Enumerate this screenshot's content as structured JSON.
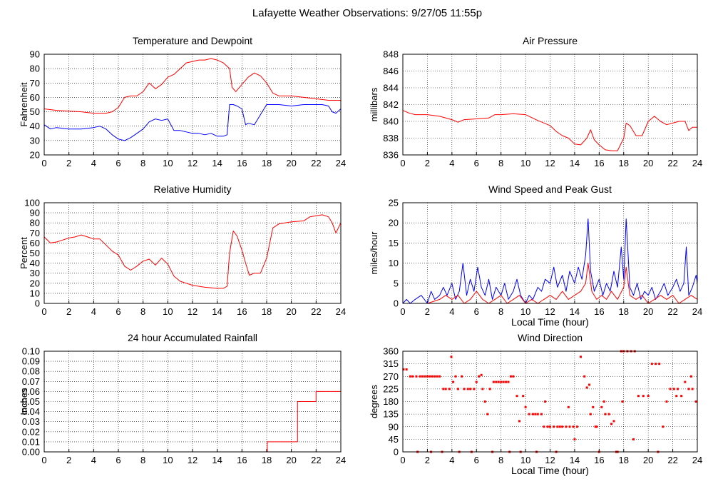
{
  "page": {
    "title": "Lafayette Weather Observations: 9/27/05 11:55p"
  },
  "colors": {
    "red": "#ff0000",
    "blue": "#0000ff",
    "grid": "#000000",
    "frame": "#000000"
  },
  "chart_data": [
    {
      "id": "temp",
      "type": "line",
      "title": "Temperature and Dewpoint",
      "ylabel": "Fahrenheit",
      "xlabel": "",
      "xlim": [
        0,
        24
      ],
      "ylim": [
        20,
        90
      ],
      "xticks": [
        0,
        2,
        4,
        6,
        8,
        10,
        12,
        14,
        16,
        18,
        20,
        22,
        24
      ],
      "yticks": [
        20,
        30,
        40,
        50,
        60,
        70,
        80,
        90
      ],
      "ytick_labels": [
        "20",
        "30",
        "40",
        "50",
        "60",
        "70",
        "80",
        "90"
      ],
      "grid": true,
      "series": [
        {
          "color": "#ff0000",
          "x": [
            0,
            1,
            2,
            3,
            4,
            5,
            5.5,
            6,
            6.5,
            7,
            7.5,
            8,
            8.5,
            9,
            9.5,
            10,
            10.5,
            11,
            11.5,
            12,
            12.5,
            13,
            13.5,
            14,
            14.5,
            15,
            15.2,
            15.5,
            16,
            16.5,
            17,
            17.5,
            18,
            18.5,
            19,
            20,
            21,
            22,
            23,
            24
          ],
          "y": [
            52,
            51,
            50.5,
            50,
            49,
            49,
            50,
            53,
            60,
            61,
            61,
            64,
            70,
            66,
            69,
            74,
            76,
            80,
            84,
            85,
            86,
            86,
            87,
            86,
            84,
            80,
            67,
            64,
            69,
            74,
            77,
            75,
            70,
            63,
            61,
            61,
            60,
            59,
            58,
            58
          ]
        },
        {
          "color": "#0000ff",
          "x": [
            0,
            0.5,
            1,
            2,
            3,
            4,
            4.5,
            5,
            5.5,
            6,
            6.5,
            7,
            7.5,
            8,
            8.5,
            9,
            9.5,
            10,
            10.5,
            11,
            11.5,
            12,
            12.5,
            13,
            13.5,
            14,
            14.5,
            14.8,
            15,
            15.3,
            15.6,
            16,
            16.3,
            16.5,
            17,
            17.5,
            18,
            18.5,
            19,
            20,
            21,
            22,
            22.5,
            23,
            23.3,
            23.6,
            24
          ],
          "y": [
            41,
            38,
            39,
            38,
            38,
            39,
            40,
            38,
            34,
            31,
            30,
            32,
            35,
            38,
            43,
            45,
            44,
            45,
            37,
            37,
            36,
            35,
            35,
            34,
            35,
            33,
            33,
            34,
            55,
            55,
            54,
            52,
            41,
            42,
            41,
            48,
            55,
            55,
            55,
            54,
            55,
            55,
            55,
            54,
            50,
            49,
            52
          ]
        }
      ]
    },
    {
      "id": "press",
      "type": "line",
      "title": "Air Pressure",
      "ylabel": "millibars",
      "xlabel": "",
      "xlim": [
        0,
        24
      ],
      "ylim": [
        836,
        848
      ],
      "xticks": [
        0,
        2,
        4,
        6,
        8,
        10,
        12,
        14,
        16,
        18,
        20,
        22,
        24
      ],
      "yticks": [
        836,
        838,
        840,
        842,
        844,
        846,
        848
      ],
      "ytick_labels": [
        "836",
        "838",
        "840",
        "842",
        "844",
        "846",
        "848"
      ],
      "grid": true,
      "series": [
        {
          "color": "#ff0000",
          "x": [
            0,
            0.5,
            1,
            2,
            3,
            4,
            4.5,
            5,
            6,
            7,
            7.5,
            8,
            9,
            10,
            11,
            12,
            12.5,
            13,
            13.5,
            14,
            14.5,
            15,
            15.3,
            15.6,
            16,
            16.5,
            17,
            17.5,
            18,
            18.2,
            18.5,
            19,
            19.5,
            20,
            20.5,
            21,
            21.5,
            22,
            22.5,
            23,
            23.3,
            23.6,
            24
          ],
          "y": [
            841.3,
            841,
            840.8,
            840.8,
            840.6,
            840.2,
            839.9,
            840.2,
            840.3,
            840.4,
            840.8,
            840.8,
            840.9,
            840.8,
            840.1,
            839.5,
            838.8,
            838.3,
            838,
            837.3,
            837.2,
            838,
            839,
            837.8,
            837.2,
            836.6,
            836.5,
            836.5,
            838,
            839.8,
            839.5,
            838.3,
            838.3,
            840,
            840.6,
            840,
            839.6,
            839.8,
            840,
            840,
            838.9,
            839.3,
            839.3
          ]
        }
      ]
    },
    {
      "id": "rh",
      "type": "line",
      "title": "Relative Humidity",
      "ylabel": "Percent",
      "xlabel": "",
      "xlim": [
        0,
        24
      ],
      "ylim": [
        0,
        100
      ],
      "xticks": [
        0,
        2,
        4,
        6,
        8,
        10,
        12,
        14,
        16,
        18,
        20,
        22,
        24
      ],
      "yticks": [
        0,
        10,
        20,
        30,
        40,
        50,
        60,
        70,
        80,
        90,
        100
      ],
      "ytick_labels": [
        "0",
        "10",
        "20",
        "30",
        "40",
        "50",
        "60",
        "70",
        "80",
        "90",
        "100"
      ],
      "grid": true,
      "series": [
        {
          "color": "#ff0000",
          "x": [
            0,
            0.5,
            1,
            1.5,
            2,
            2.5,
            3,
            3.5,
            4,
            4.5,
            5,
            5.5,
            6,
            6.5,
            7,
            7.5,
            8,
            8.5,
            9,
            9.5,
            10,
            10.5,
            11,
            11.5,
            12,
            13,
            14,
            14.5,
            14.8,
            15,
            15.3,
            15.6,
            16,
            16.3,
            16.6,
            17,
            17.5,
            18,
            18.5,
            19,
            20,
            21,
            21.5,
            22,
            22.5,
            23,
            23.3,
            23.6,
            24
          ],
          "y": [
            66,
            60,
            61,
            63,
            65,
            66,
            68,
            66,
            64,
            64,
            58,
            52,
            48,
            37,
            33,
            37,
            42,
            44,
            38,
            45,
            39,
            27,
            22,
            20,
            18,
            16,
            15,
            15,
            17,
            50,
            72,
            67,
            53,
            40,
            28,
            30,
            30,
            45,
            75,
            79,
            81,
            82,
            86,
            87,
            88,
            86,
            80,
            70,
            80
          ]
        }
      ]
    },
    {
      "id": "wind",
      "type": "line",
      "title": "Wind Speed and Peak Gust",
      "ylabel": "miles/hour",
      "xlabel": "Local Time (hour)",
      "xlim": [
        0,
        24
      ],
      "ylim": [
        0,
        25
      ],
      "xticks": [
        0,
        2,
        4,
        6,
        8,
        10,
        12,
        14,
        16,
        18,
        20,
        22,
        24
      ],
      "yticks": [
        0,
        5,
        10,
        15,
        20,
        25
      ],
      "ytick_labels": [
        "0",
        "5",
        "10",
        "15",
        "20",
        "25"
      ],
      "grid": true,
      "series": [
        {
          "color": "#0000ff",
          "x": [
            0,
            0.3,
            0.6,
            1,
            1.5,
            2,
            2.3,
            2.6,
            3,
            3.3,
            3.6,
            4,
            4.3,
            4.6,
            4.9,
            5.2,
            5.5,
            5.8,
            6.1,
            6.4,
            6.7,
            7,
            7.3,
            7.6,
            8,
            8.3,
            8.6,
            9,
            9.3,
            9.6,
            10,
            10.3,
            10.6,
            11,
            11.3,
            11.6,
            12,
            12.3,
            12.6,
            13,
            13.3,
            13.6,
            14,
            14.3,
            14.6,
            14.9,
            15.1,
            15.3,
            15.6,
            16,
            16.3,
            16.6,
            16.9,
            17.2,
            17.5,
            17.8,
            18,
            18.2,
            18.5,
            18.8,
            19.1,
            19.4,
            19.7,
            20,
            20.3,
            20.6,
            21,
            21.3,
            21.6,
            22,
            22.3,
            22.6,
            22.9,
            23.1,
            23.3,
            23.6,
            23.9,
            24
          ],
          "y": [
            0,
            1,
            0,
            1,
            2,
            0,
            3,
            1,
            2,
            4,
            2,
            5,
            1,
            3,
            10,
            2,
            6,
            3,
            9,
            4,
            2,
            6,
            1,
            4,
            2,
            5,
            1,
            3,
            6,
            2,
            0,
            2,
            1,
            4,
            3,
            6,
            5,
            9,
            4,
            7,
            3,
            8,
            5,
            9,
            6,
            12,
            21,
            8,
            3,
            6,
            2,
            5,
            3,
            8,
            4,
            14,
            6,
            21,
            4,
            2,
            5,
            1,
            3,
            2,
            4,
            1,
            3,
            5,
            2,
            4,
            6,
            3,
            5,
            14,
            2,
            4,
            7,
            5
          ]
        },
        {
          "color": "#ff0000",
          "x": [
            0,
            1,
            2,
            3,
            3.5,
            4,
            4.5,
            5,
            5.5,
            6,
            6.5,
            7,
            7.5,
            8,
            8.5,
            9,
            9.5,
            10,
            10.5,
            11,
            11.5,
            12,
            12.5,
            13,
            13.5,
            14,
            14.5,
            14.9,
            15.1,
            15.4,
            15.8,
            16.2,
            16.6,
            17,
            17.5,
            18,
            18.2,
            18.5,
            19,
            19.5,
            20,
            20.5,
            21,
            21.5,
            22,
            22.5,
            23,
            23.5,
            24
          ],
          "y": [
            0,
            0,
            0,
            1,
            2,
            1,
            2,
            0,
            1,
            3,
            1,
            0,
            1,
            2,
            0,
            1,
            2,
            0,
            1,
            0,
            1,
            2,
            1,
            3,
            1,
            2,
            3,
            5,
            10,
            3,
            1,
            2,
            1,
            3,
            1,
            4,
            9,
            2,
            1,
            2,
            0,
            1,
            2,
            1,
            2,
            0,
            1,
            2,
            1
          ]
        }
      ]
    },
    {
      "id": "rain",
      "type": "line",
      "title": "24 hour Accumulated Rainfall",
      "ylabel": "Inches",
      "xlabel": "",
      "xlim": [
        0,
        24
      ],
      "ylim": [
        0,
        0.1
      ],
      "xticks": [
        0,
        2,
        4,
        6,
        8,
        10,
        12,
        14,
        16,
        18,
        20,
        22,
        24
      ],
      "yticks": [
        0,
        0.01,
        0.02,
        0.03,
        0.04,
        0.05,
        0.06,
        0.07,
        0.08,
        0.09,
        0.1
      ],
      "ytick_labels": [
        "0.00",
        "0.01",
        "0.02",
        "0.03",
        "0.04",
        "0.05",
        "0.06",
        "0.07",
        "0.08",
        "0.09",
        "0.10"
      ],
      "grid": true,
      "series": [
        {
          "color": "#ff0000",
          "x": [
            0,
            18.05,
            18.05,
            20.5,
            20.5,
            22.0,
            22.0,
            24
          ],
          "y": [
            0,
            0,
            0.01,
            0.01,
            0.05,
            0.05,
            0.06,
            0.06
          ]
        }
      ]
    },
    {
      "id": "dir",
      "type": "scatter",
      "title": "Wind Direction",
      "ylabel": "degrees",
      "xlabel": "Local Time (hour)",
      "xlim": [
        0,
        24
      ],
      "ylim": [
        0,
        360
      ],
      "xticks": [
        0,
        2,
        4,
        6,
        8,
        10,
        12,
        14,
        16,
        18,
        20,
        22,
        24
      ],
      "yticks": [
        0,
        45,
        90,
        135,
        180,
        225,
        270,
        315,
        360
      ],
      "ytick_labels": [
        "0",
        "45",
        "90",
        "135",
        "180",
        "225",
        "270",
        "315",
        "360"
      ],
      "grid": true,
      "series": [
        {
          "color": "#ff0000",
          "x": [
            0.05,
            0.3,
            0.6,
            0.8,
            1.1,
            1.4,
            1.6,
            1.8,
            2.0,
            2.2,
            2.4,
            2.6,
            2.8,
            3.0,
            3.3,
            3.5,
            3.8,
            3.95,
            4.1,
            4.3,
            4.5,
            4.8,
            5.0,
            5.3,
            5.5,
            5.8,
            6.0,
            6.2,
            6.5,
            6.7,
            6.9,
            7.1,
            7.4,
            7.6,
            7.8,
            8.0,
            8.2,
            8.4,
            8.6,
            8.8,
            9.0,
            9.3,
            9.5,
            9.8,
            10.0,
            10.3,
            10.6,
            10.8,
            11.0,
            11.3,
            11.5,
            11.8,
            12.0,
            12.3,
            12.6,
            12.8,
            13.0,
            13.3,
            13.6,
            13.9,
            14.2,
            14.5,
            14.8,
            15.0,
            15.2,
            15.5,
            15.8,
            16.0,
            16.2,
            16.5,
            16.8,
            17.0,
            17.2,
            17.5,
            17.8,
            18.0,
            18.3,
            18.6,
            18.9,
            19.2,
            19.6,
            20.0,
            20.3,
            20.6,
            20.9,
            21.2,
            21.5,
            21.8,
            22.1,
            22.4,
            22.7,
            23.0,
            23.3,
            23.6,
            23.9,
            2.3,
            3.2,
            4.6,
            5.6,
            7.3,
            8.7,
            9.6,
            10.9,
            12.5,
            14.0,
            15.3,
            16.4,
            17.4,
            18.8,
            20.8,
            22.3,
            23.5,
            1.2,
            6.4,
            11.6,
            13.5,
            15.7,
            17.9
          ],
          "y": [
            295,
            295,
            270,
            270,
            270,
            270,
            270,
            270,
            270,
            270,
            270,
            270,
            270,
            270,
            225,
            225,
            225,
            340,
            250,
            270,
            225,
            270,
            225,
            225,
            225,
            225,
            250,
            270,
            225,
            180,
            135,
            225,
            250,
            250,
            250,
            250,
            250,
            250,
            250,
            270,
            270,
            200,
            110,
            200,
            160,
            135,
            135,
            135,
            135,
            135,
            90,
            90,
            90,
            90,
            90,
            90,
            90,
            90,
            90,
            90,
            90,
            340,
            270,
            230,
            240,
            160,
            90,
            0,
            160,
            135,
            135,
            100,
            110,
            0,
            360,
            360,
            360,
            360,
            360,
            200,
            200,
            200,
            315,
            315,
            315,
            90,
            180,
            225,
            225,
            225,
            200,
            250,
            225,
            225,
            180,
            0,
            0,
            0,
            0,
            0,
            0,
            0,
            0,
            0,
            45,
            135,
            180,
            0,
            45,
            0,
            200,
            270,
            0,
            275,
            180,
            160,
            90,
            180
          ]
        }
      ]
    }
  ]
}
